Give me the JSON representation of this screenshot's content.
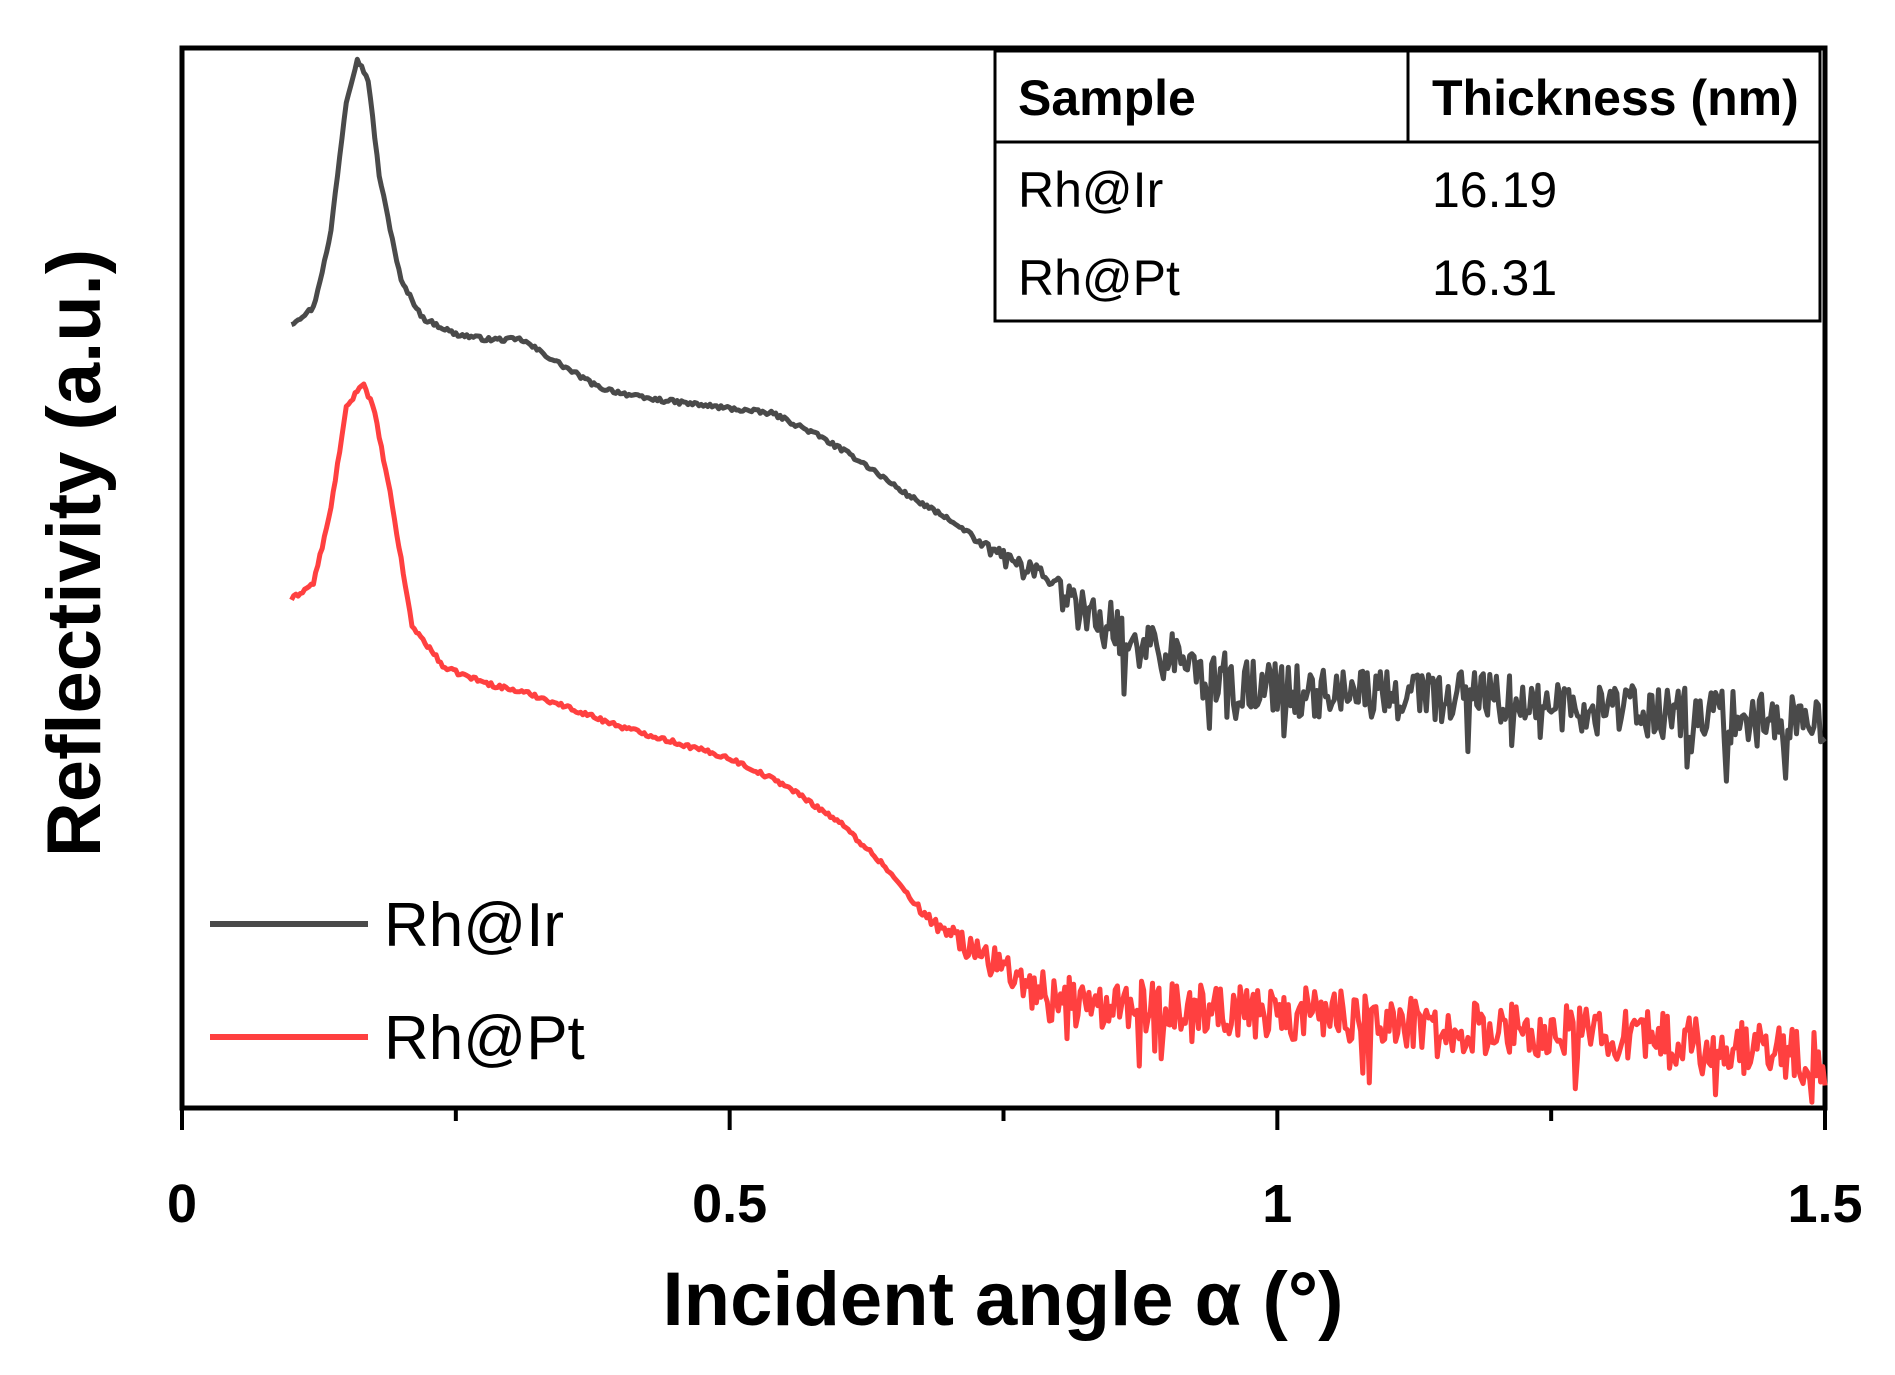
{
  "chart_data": {
    "type": "line",
    "title": "",
    "xlabel": "Incident angle α (°)",
    "ylabel": "Reflectivity (a.u.)",
    "xlim": [
      0,
      1.5
    ],
    "ylim": [
      0,
      1
    ],
    "x_ticks": [
      0,
      0.25,
      0.5,
      0.75,
      1,
      1.25,
      1.5
    ],
    "x_tick_labels": [
      "0",
      "",
      "0.5",
      "",
      "1",
      "",
      "1.5"
    ],
    "y_ticks_shown": false,
    "legend_position": "bottom-left",
    "series": [
      {
        "name": "Rh@Ir",
        "color": "#4a4a4a",
        "points": [
          [
            0.1,
            0.74
          ],
          [
            0.12,
            0.755
          ],
          [
            0.135,
            0.82
          ],
          [
            0.15,
            0.95
          ],
          [
            0.16,
            0.99
          ],
          [
            0.17,
            0.97
          ],
          [
            0.18,
            0.88
          ],
          [
            0.2,
            0.78
          ],
          [
            0.22,
            0.745
          ],
          [
            0.25,
            0.73
          ],
          [
            0.28,
            0.725
          ],
          [
            0.31,
            0.725
          ],
          [
            0.34,
            0.705
          ],
          [
            0.38,
            0.68
          ],
          [
            0.42,
            0.67
          ],
          [
            0.46,
            0.665
          ],
          [
            0.5,
            0.66
          ],
          [
            0.54,
            0.655
          ],
          [
            0.58,
            0.635
          ],
          [
            0.62,
            0.61
          ],
          [
            0.66,
            0.58
          ],
          [
            0.7,
            0.555
          ],
          [
            0.74,
            0.525
          ],
          [
            0.78,
            0.5
          ],
          [
            0.82,
            0.47
          ],
          [
            0.86,
            0.445
          ],
          [
            0.9,
            0.425
          ],
          [
            0.95,
            0.405
          ],
          [
            1.0,
            0.395
          ],
          [
            1.1,
            0.39
          ],
          [
            1.2,
            0.385
          ],
          [
            1.3,
            0.375
          ],
          [
            1.4,
            0.37
          ],
          [
            1.5,
            0.36
          ]
        ],
        "noise": {
          "start": 0.7,
          "amplitude": 0.025
        }
      },
      {
        "name": "Rh@Pt",
        "color": "#ff4040",
        "points": [
          [
            0.1,
            0.48
          ],
          [
            0.12,
            0.495
          ],
          [
            0.135,
            0.56
          ],
          [
            0.15,
            0.66
          ],
          [
            0.165,
            0.685
          ],
          [
            0.175,
            0.66
          ],
          [
            0.19,
            0.58
          ],
          [
            0.21,
            0.455
          ],
          [
            0.24,
            0.415
          ],
          [
            0.28,
            0.4
          ],
          [
            0.32,
            0.39
          ],
          [
            0.36,
            0.375
          ],
          [
            0.4,
            0.36
          ],
          [
            0.45,
            0.345
          ],
          [
            0.5,
            0.33
          ],
          [
            0.55,
            0.305
          ],
          [
            0.6,
            0.27
          ],
          [
            0.64,
            0.23
          ],
          [
            0.68,
            0.18
          ],
          [
            0.72,
            0.15
          ],
          [
            0.76,
            0.125
          ],
          [
            0.8,
            0.1
          ],
          [
            0.9,
            0.095
          ],
          [
            1.0,
            0.09
          ],
          [
            1.1,
            0.085
          ],
          [
            1.2,
            0.075
          ],
          [
            1.3,
            0.07
          ],
          [
            1.4,
            0.06
          ],
          [
            1.5,
            0.045
          ]
        ],
        "noise": {
          "start": 0.65,
          "amplitude": 0.025
        }
      }
    ],
    "inset_table": {
      "headers": [
        "Sample",
        "Thickness (nm)"
      ],
      "rows": [
        [
          "Rh@Ir",
          "16.19"
        ],
        [
          "Rh@Pt",
          "16.31"
        ]
      ]
    }
  }
}
